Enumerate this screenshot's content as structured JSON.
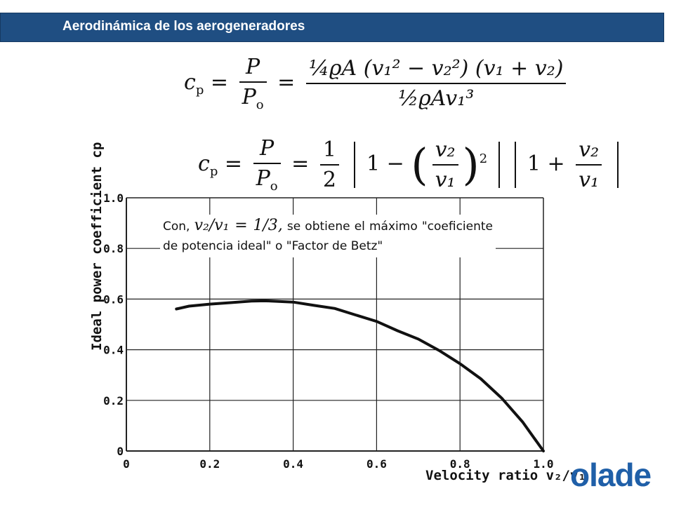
{
  "header": {
    "title": "Aerodinámica de los aerogeneradores",
    "bar_color": "#1f4e82"
  },
  "formula1": {
    "lhs": "c",
    "lhs_sub": "p",
    "frac1_num": "P",
    "frac1_den": "P",
    "frac1_den_sub": "o",
    "frac2_num": "¼ϱA (v₁² − v₂²) (v₁ + v₂)",
    "frac2_den": "½ϱAv₁³"
  },
  "formula2": {
    "lhs": "c",
    "lhs_sub": "p",
    "frac1_num": "P",
    "frac1_den": "P",
    "frac1_den_sub": "o",
    "half_num": "1",
    "half_den": "2",
    "one_a": "1",
    "minus": "−",
    "ratio_num": "v₂",
    "ratio_den": "v₁",
    "square": "2",
    "one_b": "1",
    "plus": "+",
    "ratio2_num": "v₂",
    "ratio2_den": "v₁"
  },
  "callout": {
    "prefix": "Con,",
    "math": "v₂/v₁ = 1/3,",
    "text": "se obtiene el máximo \"coeficiente de potencia ideal\" o \"Factor de Betz\""
  },
  "chart_data": {
    "type": "line",
    "xlabel": "Velocity ratio v₂/v₁",
    "ylabel": "Ideal power coefficient cp",
    "xlim": [
      0,
      1.0
    ],
    "ylim": [
      0,
      1.0
    ],
    "x_ticks": [
      "0",
      "0.2",
      "0.4",
      "0.6",
      "0.8",
      "1.0"
    ],
    "y_ticks": [
      "0",
      "0.2",
      "0.4",
      "0.6",
      "0.8",
      "1.0"
    ],
    "grid": true,
    "series": [
      {
        "x": [
          0.12,
          0.15,
          0.2,
          0.25,
          0.3,
          0.333,
          0.4,
          0.45,
          0.5,
          0.55,
          0.6,
          0.65,
          0.7,
          0.75,
          0.8,
          0.85,
          0.9,
          0.95,
          1.0
        ],
        "y": [
          0.561,
          0.572,
          0.58,
          0.586,
          0.592,
          0.593,
          0.588,
          0.575,
          0.563,
          0.537,
          0.512,
          0.475,
          0.442,
          0.397,
          0.345,
          0.285,
          0.209,
          0.115,
          0.0
        ]
      }
    ],
    "line_color": "#111111"
  },
  "logo": {
    "text": "olade",
    "color": "#1f5fa8"
  }
}
